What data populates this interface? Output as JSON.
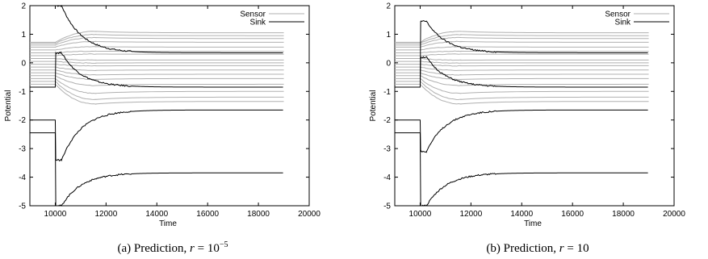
{
  "chart_data": [
    {
      "type": "line",
      "caption_prefix": "(a) Prediction, ",
      "caption_var": "r",
      "caption_eq": " = 10",
      "caption_sup": "−5",
      "xlabel": "Time",
      "ylabel": "Potential",
      "xlim": [
        9000,
        20000
      ],
      "ylim": [
        -5,
        2
      ],
      "xticks": [
        "10000",
        "12000",
        "14000",
        "16000",
        "18000",
        "20000"
      ],
      "yticks": [
        "2",
        "1",
        "0",
        "-1",
        "-2",
        "-3",
        "-4",
        "-5"
      ],
      "legend": [
        "Sensor",
        "Sink"
      ],
      "legend_position": "top-right",
      "colors": {
        "sensor": "#b0b0b0",
        "sink": "#000000"
      },
      "sensor_series": [
        {
          "start": 0.72,
          "end": 1.05
        },
        {
          "start": 0.68,
          "end": 0.95
        },
        {
          "start": 0.62,
          "end": 0.85
        },
        {
          "start": 0.55,
          "end": 0.72
        },
        {
          "start": 0.45,
          "end": 0.55
        },
        {
          "start": 0.35,
          "end": 0.4
        },
        {
          "start": 0.25,
          "end": 0.3
        },
        {
          "start": 0.15,
          "end": 0.1
        },
        {
          "start": 0.05,
          "end": 0.0
        },
        {
          "start": -0.05,
          "end": -0.1
        },
        {
          "start": -0.15,
          "end": -0.25
        },
        {
          "start": -0.25,
          "end": -0.4
        },
        {
          "start": -0.35,
          "end": -0.55
        },
        {
          "start": -0.45,
          "end": -0.75
        },
        {
          "start": -0.55,
          "end": -1.0
        },
        {
          "start": -0.65,
          "end": -1.2
        },
        {
          "start": -0.75,
          "end": -1.35
        }
      ],
      "sink_series": [
        {
          "start": 2.0,
          "peak": 2.0,
          "end": 0.35
        },
        {
          "start": -0.85,
          "peak": 0.35,
          "end": -0.85
        },
        {
          "start": -2.0,
          "peak": -3.4,
          "end": -1.65
        },
        {
          "start": -2.45,
          "peak": -5.0,
          "end": -3.85
        }
      ]
    },
    {
      "type": "line",
      "caption_prefix": "(b) Prediction, ",
      "caption_var": "r",
      "caption_eq": " = 10",
      "caption_sup": "",
      "xlabel": "Time",
      "ylabel": "Potential",
      "xlim": [
        9000,
        20000
      ],
      "ylim": [
        -5,
        2
      ],
      "xticks": [
        "10000",
        "12000",
        "14000",
        "16000",
        "18000",
        "20000"
      ],
      "yticks": [
        "2",
        "1",
        "0",
        "-1",
        "-2",
        "-3",
        "-4",
        "-5"
      ],
      "legend": [
        "Sensor",
        "Sink"
      ],
      "legend_position": "top-right",
      "colors": {
        "sensor": "#b0b0b0",
        "sink": "#000000"
      },
      "sensor_series": [
        {
          "start": 0.72,
          "end": 1.05
        },
        {
          "start": 0.68,
          "end": 0.95
        },
        {
          "start": 0.62,
          "end": 0.85
        },
        {
          "start": 0.55,
          "end": 0.72
        },
        {
          "start": 0.45,
          "end": 0.55
        },
        {
          "start": 0.35,
          "end": 0.4
        },
        {
          "start": 0.25,
          "end": 0.3
        },
        {
          "start": 0.15,
          "end": 0.1
        },
        {
          "start": 0.05,
          "end": 0.0
        },
        {
          "start": -0.05,
          "end": -0.1
        },
        {
          "start": -0.15,
          "end": -0.25
        },
        {
          "start": -0.25,
          "end": -0.4
        },
        {
          "start": -0.35,
          "end": -0.55
        },
        {
          "start": -0.45,
          "end": -0.75
        },
        {
          "start": -0.55,
          "end": -1.0
        },
        {
          "start": -0.65,
          "end": -1.2
        },
        {
          "start": -0.75,
          "end": -1.35
        }
      ],
      "sink_series": [
        {
          "start": -0.85,
          "peak": 1.45,
          "end": 0.35
        },
        {
          "start": -0.85,
          "peak": 0.2,
          "end": -0.85
        },
        {
          "start": -2.0,
          "peak": -3.1,
          "end": -1.65
        },
        {
          "start": -2.45,
          "peak": -5.0,
          "end": -3.85
        }
      ]
    }
  ]
}
